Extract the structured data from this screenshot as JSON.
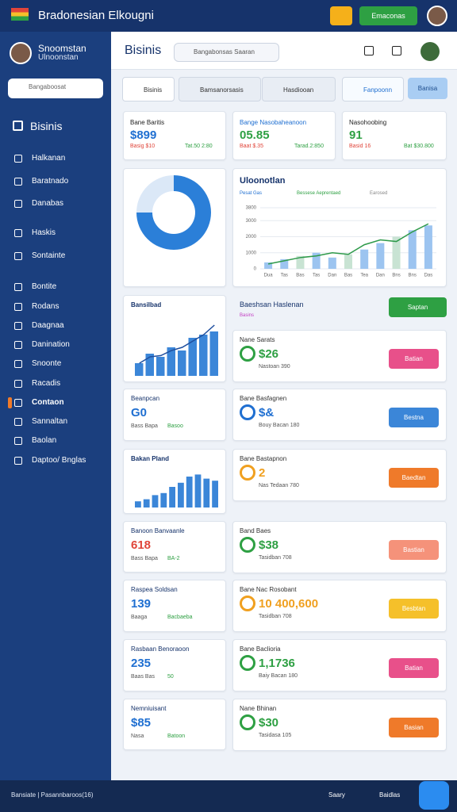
{
  "topbar": {
    "title": "Bradonesian Elkougni",
    "button": "Emaconas"
  },
  "sidebar": {
    "name": "Snoomstan",
    "role": "Ulnoonstan",
    "search": "Bangaboosat",
    "heading": "Bisinis",
    "active": 11,
    "menu": [
      "Halkanan",
      "Baratnado",
      "Danabas",
      "Haskis",
      "Sontainte",
      "Bontite",
      "Rodans",
      "Daagnaa",
      "Danination",
      "Snoonte",
      "Racadis",
      "Contaon",
      "Sannaltan",
      "Baolan",
      "Daptoo/ Bnglas"
    ]
  },
  "header": {
    "title": "Bisinis",
    "search": "Bangabonsas Saaran"
  },
  "tabs": [
    "Bisinis",
    "Bamsanorsasis",
    "Hasdiooan",
    "Fanpoonn"
  ],
  "tab_action": "Banisa",
  "stats": [
    {
      "label": "Bane Baritis",
      "value": "$899",
      "sub_left": "Basig $10",
      "sub_right": "Tat.50 2:80",
      "color": "#1f6fd1"
    },
    {
      "label": "Bange Nasobaheanoon",
      "value": "05.85",
      "sub_left": "Baat $.35",
      "sub_right": "Tarad.2:850",
      "color": "#2ea043"
    },
    {
      "label": "Nasohoobing",
      "value": "91",
      "sub_left": "Basid 16",
      "sub_right": "Bat $30.800",
      "color": "#2ea043"
    }
  ],
  "donut": {
    "values": [
      75,
      25
    ],
    "colors": [
      "#2b7fd8",
      "#dbe8f7"
    ]
  },
  "trend": {
    "title": "Uloonotlan",
    "legend": [
      "Pesat Gas",
      "Bessese Aeprentaed",
      "Earosed"
    ],
    "ylim": [
      0,
      3800
    ],
    "yticks": [
      0,
      1000,
      2000,
      3000,
      3800
    ],
    "categories": [
      "Dua",
      "Tas",
      "Bas",
      "Tas",
      "Dan",
      "Bas",
      "Tea",
      "Dan",
      "Bns",
      "Bns",
      "Das"
    ],
    "bars": [
      400,
      600,
      800,
      1000,
      700,
      900,
      1200,
      1600,
      2000,
      2400,
      2700
    ],
    "line": [
      300,
      500,
      700,
      800,
      1000,
      900,
      1500,
      1800,
      1700,
      2300,
      2800
    ]
  },
  "right_header": {
    "title": "Baeshsan Haslenan",
    "sub": "Basins",
    "button": "Saptan"
  },
  "left_cards": [
    {
      "label": "Bansilbad",
      "chart": {
        "ylim": [
          0,
          100
        ],
        "bars": [
          20,
          35,
          30,
          45,
          40,
          60,
          65,
          70
        ],
        "line": [
          20,
          30,
          32,
          40,
          45,
          55,
          65,
          80
        ]
      }
    },
    {
      "label": "Beanpcan",
      "value": "G0",
      "sub_left": "Bass Bapa",
      "sub_right": "Basoo",
      "color": "#1f6fd1"
    },
    {
      "label": "Bakan Pland",
      "chart": {
        "ylim": [
          0,
          100
        ],
        "bars": [
          15,
          20,
          30,
          35,
          50,
          60,
          75,
          80,
          70,
          65
        ]
      }
    },
    {
      "label": "Banoon Banvaanle",
      "value": "618",
      "sub_left": "Bass Bapa",
      "sub_right": "BA-2",
      "color": "#e0453a"
    },
    {
      "label": "Raspea Soldsan",
      "value": "139",
      "sub_left": "Baaga",
      "sub_right": "Bacbaeba",
      "color": "#1f6fd1"
    },
    {
      "label": "Rasbaan Benoraoon",
      "value": "235",
      "sub_left": "Baas Bas",
      "sub_right": "50",
      "color": "#1f6fd1"
    },
    {
      "label": "Nemniuisant",
      "value": "$85",
      "sub_left": "Nasa",
      "sub_right": "Batoon",
      "color": "#1f6fd1"
    }
  ],
  "right_cards": [
    {
      "label": "Nane Sarats",
      "value": "$26",
      "sub": "Nastoan 390",
      "button": "Batian",
      "color": "#2ea043",
      "button_color": "#e8508a"
    },
    {
      "label": "Bane Basfagnen",
      "value": "$&",
      "sub": "Bouy Bacan 180",
      "button": "Bestna",
      "color": "#1f6fd1",
      "button_color": "#3b86d8"
    },
    {
      "label": "Bane Bastapnon",
      "value": "2",
      "sub": "Nas Tedaan 780",
      "button": "Baedtan",
      "color": "#f0a020",
      "button_color": "#ef7a2a"
    },
    {
      "label": "Band Baes",
      "value": "$38",
      "sub": "Tasidban 708",
      "button": "Bastian",
      "color": "#2ea043",
      "button_color": "#f5927a"
    },
    {
      "label": "Bane Nac Rosobant",
      "value": "10 400,600",
      "sub": "Tasidban 708",
      "button": "Besbtan",
      "color": "#f0a020",
      "button_color": "#f5c02a"
    },
    {
      "label": "Bane Baclioria",
      "value": "1,1736",
      "sub": "Baiy Bacan 180",
      "button": "Batian",
      "color": "#2ea043",
      "button_color": "#e8508a"
    },
    {
      "label": "Nane Bhinan",
      "value": "$30",
      "sub": "Tasidasa 105",
      "button": "Basian",
      "color": "#2ea043",
      "button_color": "#ef7a2a"
    }
  ],
  "footer": {
    "status": "Bansiate | Pasannbaroos(16)",
    "help": "Saary",
    "details": "Baidlas"
  }
}
